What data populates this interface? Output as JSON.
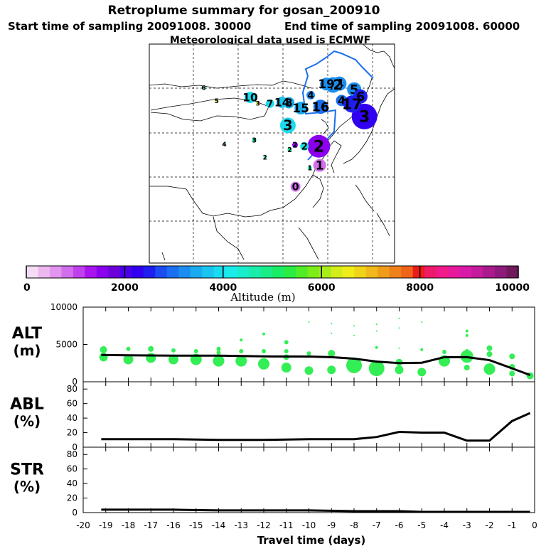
{
  "header": {
    "title": "Retroplume summary for gosan_200910",
    "start_label": "Start time of sampling 20091008. 30000",
    "end_label": "End time of sampling 20091008. 60000",
    "met_label": "Meteorological data used is ECMWF"
  },
  "colorbar": {
    "label": "Altitude (m)",
    "ticks": [
      "0",
      "2000",
      "4000",
      "6000",
      "8000",
      "10000"
    ],
    "colors": [
      "#f5dcf5",
      "#eeb8ee",
      "#e394ee",
      "#d26eee",
      "#c040ee",
      "#a814ee",
      "#8a00ee",
      "#6c00d8",
      "#4a00e8",
      "#3200f0",
      "#1e1ef0",
      "#1a4cf0",
      "#1a6ef0",
      "#1a8ef0",
      "#1aaaf0",
      "#1ac4f0",
      "#1adcf0",
      "#1aecec",
      "#1aeccc",
      "#1aecaa",
      "#1aec88",
      "#1aec66",
      "#2cec44",
      "#50ec28",
      "#7cec1a",
      "#a8ec1a",
      "#d4ec1a",
      "#f0ec1a",
      "#f0d41a",
      "#f0b81a",
      "#f09c1a",
      "#f0801a",
      "#f0641a",
      "#f01a1a",
      "#f01a6a",
      "#f01a8a",
      "#e81a9c",
      "#d81aa8",
      "#c41a9c",
      "#aa1a8c",
      "#901a7c",
      "#701a5c"
    ]
  },
  "map_markers": [
    {
      "label": "0",
      "lon": 122.8,
      "lat": 37.9,
      "color": "#d26eee",
      "size": 7
    },
    {
      "label": "1",
      "lon": 128.2,
      "lat": 42.7,
      "color": "#d26eee",
      "size": 9
    },
    {
      "label": "1",
      "lon": 126.0,
      "lat": 42.1,
      "color": "#1aecaa",
      "size": 3
    },
    {
      "label": "2",
      "lon": 128.0,
      "lat": 47.0,
      "color": "#8a00ee",
      "size": 16
    },
    {
      "label": "2",
      "lon": 124.8,
      "lat": 47.0,
      "color": "#1ae0e0",
      "size": 6
    },
    {
      "label": "2",
      "lon": 122.7,
      "lat": 47.3,
      "color": "#8a00ee",
      "size": 4
    },
    {
      "label": "2",
      "lon": 121.5,
      "lat": 46.2,
      "color": "#1aecaa",
      "size": 3
    },
    {
      "label": "2",
      "lon": 116.0,
      "lat": 44.5,
      "color": "#1aecaa",
      "size": 2
    },
    {
      "label": "3",
      "lon": 121.1,
      "lat": 51.7,
      "color": "#1adcf0",
      "size": 11
    },
    {
      "label": "3",
      "lon": 113.6,
      "lat": 48.4,
      "color": "#1aecaa",
      "size": 3
    },
    {
      "label": "3",
      "lon": 114.4,
      "lat": 56.7,
      "color": "#f0ec1a",
      "size": 2
    },
    {
      "label": "3",
      "lon": 138.2,
      "lat": 53.7,
      "color": "#3200f0",
      "size": 18
    },
    {
      "label": "4",
      "lon": 106.9,
      "lat": 47.5,
      "color": "#1aecaa",
      "size": 2
    },
    {
      "label": "4",
      "lon": 126.2,
      "lat": 58.5,
      "color": "#1a8ef0",
      "size": 6
    },
    {
      "label": "4",
      "lon": 133.1,
      "lat": 57.3,
      "color": "#1a6ef0",
      "size": 8
    },
    {
      "label": "4",
      "lon": 132.6,
      "lat": 61.1,
      "color": "#1a8ef0",
      "size": 10
    },
    {
      "label": "5",
      "lon": 105.2,
      "lat": 57.2,
      "color": "#f0ec1a",
      "size": 2
    },
    {
      "label": "5",
      "lon": 135.9,
      "lat": 59.8,
      "color": "#1a8ef0",
      "size": 10
    },
    {
      "label": "6",
      "lon": 102.3,
      "lat": 60.2,
      "color": "#1aecaa",
      "size": 2
    },
    {
      "label": "6",
      "lon": 137.3,
      "lat": 58.2,
      "color": "#1e1ef0",
      "size": 10
    },
    {
      "label": "7",
      "lon": 117.1,
      "lat": 56.6,
      "color": "#1adcf0",
      "size": 6
    },
    {
      "label": "8",
      "lon": 121.3,
      "lat": 56.8,
      "color": "#1aaaf0",
      "size": 8
    },
    {
      "label": "10",
      "lon": 112.7,
      "lat": 58.0,
      "color": "#1adcf0",
      "size": 8
    },
    {
      "label": "12",
      "lon": 131.2,
      "lat": 60.8,
      "color": "#1a8ef0",
      "size": 11
    },
    {
      "label": "14",
      "lon": 119.8,
      "lat": 56.9,
      "color": "#1ac4f0",
      "size": 8
    },
    {
      "label": "15",
      "lon": 124.0,
      "lat": 55.6,
      "color": "#1aaaf0",
      "size": 9
    },
    {
      "label": "16",
      "lon": 128.4,
      "lat": 55.9,
      "color": "#1a6ef0",
      "size": 10
    },
    {
      "label": "17",
      "lon": 135.4,
      "lat": 56.5,
      "color": "#1e1ef0",
      "size": 12
    },
    {
      "label": "19",
      "lon": 129.7,
      "lat": 61.0,
      "color": "#1a8ef0",
      "size": 9
    }
  ],
  "chart_data": [
    {
      "type": "scatter",
      "name": "ALT",
      "title": "Retroplume summary for gosan_200910",
      "ylabel": "ALT",
      "yunit": "(m)",
      "xlim": [
        -20,
        0
      ],
      "ylim": [
        0,
        10000
      ],
      "yticks": [
        "10000",
        "5000",
        "0"
      ],
      "line": {
        "x": [
          -19.2,
          -18,
          -16,
          -14,
          -13,
          -12,
          -10,
          -9,
          -8,
          -7,
          -6,
          -5,
          -4,
          -3,
          -2,
          -1,
          -0.2
        ],
        "y": [
          3600,
          3550,
          3500,
          3500,
          3450,
          3400,
          3380,
          3300,
          3100,
          2700,
          2500,
          2550,
          3300,
          3300,
          2900,
          1800,
          900
        ]
      },
      "points": [
        {
          "x": -19.1,
          "y": 4300,
          "s": 5
        },
        {
          "x": -19.1,
          "y": 3300,
          "s": 6
        },
        {
          "x": -18,
          "y": 4400,
          "s": 3
        },
        {
          "x": -18,
          "y": 3000,
          "s": 7
        },
        {
          "x": -17,
          "y": 4400,
          "s": 4
        },
        {
          "x": -17,
          "y": 3200,
          "s": 7
        },
        {
          "x": -16,
          "y": 4200,
          "s": 3
        },
        {
          "x": -16,
          "y": 3000,
          "s": 7
        },
        {
          "x": -15,
          "y": 4100,
          "s": 3
        },
        {
          "x": -15,
          "y": 3000,
          "s": 8
        },
        {
          "x": -14,
          "y": 4400,
          "s": 3
        },
        {
          "x": -14,
          "y": 3900,
          "s": 3
        },
        {
          "x": -14,
          "y": 2800,
          "s": 8
        },
        {
          "x": -13,
          "y": 5600,
          "s": 2
        },
        {
          "x": -13,
          "y": 4100,
          "s": 3
        },
        {
          "x": -13,
          "y": 2800,
          "s": 8
        },
        {
          "x": -12,
          "y": 6400,
          "s": 2
        },
        {
          "x": -12,
          "y": 4100,
          "s": 3
        },
        {
          "x": -12,
          "y": 2400,
          "s": 8
        },
        {
          "x": -11,
          "y": 5300,
          "s": 3
        },
        {
          "x": -11,
          "y": 4100,
          "s": 3
        },
        {
          "x": -11,
          "y": 3300,
          "s": 4
        },
        {
          "x": -11,
          "y": 1900,
          "s": 7
        },
        {
          "x": -10,
          "y": 8000,
          "s": 1
        },
        {
          "x": -10,
          "y": 3800,
          "s": 3
        },
        {
          "x": -10,
          "y": 1500,
          "s": 6
        },
        {
          "x": -9,
          "y": 7800,
          "s": 1
        },
        {
          "x": -9,
          "y": 6500,
          "s": 1
        },
        {
          "x": -9,
          "y": 3800,
          "s": 5
        },
        {
          "x": -9,
          "y": 1600,
          "s": 6
        },
        {
          "x": -8,
          "y": 7500,
          "s": 1
        },
        {
          "x": -8,
          "y": 6200,
          "s": 1
        },
        {
          "x": -8,
          "y": 2200,
          "s": 11
        },
        {
          "x": -7,
          "y": 7700,
          "s": 1
        },
        {
          "x": -7,
          "y": 6800,
          "s": 1
        },
        {
          "x": -7,
          "y": 4600,
          "s": 2
        },
        {
          "x": -7,
          "y": 1800,
          "s": 11
        },
        {
          "x": -6,
          "y": 8500,
          "s": 1
        },
        {
          "x": -6,
          "y": 7200,
          "s": 1
        },
        {
          "x": -6,
          "y": 4500,
          "s": 1
        },
        {
          "x": -6,
          "y": 1600,
          "s": 6
        },
        {
          "x": -6,
          "y": 2600,
          "s": 5
        },
        {
          "x": -5,
          "y": 8000,
          "s": 1
        },
        {
          "x": -5,
          "y": 4300,
          "s": 2
        },
        {
          "x": -5,
          "y": 1300,
          "s": 6
        },
        {
          "x": -4,
          "y": 4000,
          "s": 3
        },
        {
          "x": -4,
          "y": 2800,
          "s": 8
        },
        {
          "x": -3,
          "y": 6800,
          "s": 2
        },
        {
          "x": -3,
          "y": 6200,
          "s": 2
        },
        {
          "x": -3,
          "y": 4200,
          "s": 2
        },
        {
          "x": -3,
          "y": 3400,
          "s": 9
        },
        {
          "x": -3,
          "y": 1900,
          "s": 4
        },
        {
          "x": -2,
          "y": 4500,
          "s": 4
        },
        {
          "x": -2,
          "y": 3700,
          "s": 4
        },
        {
          "x": -2,
          "y": 1700,
          "s": 8
        },
        {
          "x": -1,
          "y": 3400,
          "s": 4
        },
        {
          "x": -1,
          "y": 2000,
          "s": 4
        },
        {
          "x": -1,
          "y": 1100,
          "s": 4
        },
        {
          "x": -0.2,
          "y": 800,
          "s": 5
        }
      ]
    },
    {
      "type": "line",
      "name": "ABL",
      "ylabel": "ABL",
      "yunit": "(%)",
      "xlim": [
        -20,
        0
      ],
      "ylim": [
        0,
        90
      ],
      "yticks": [
        "80",
        "60",
        "40",
        "20",
        "0"
      ],
      "x": [
        -19.2,
        -16,
        -14,
        -12,
        -10,
        -8,
        -7,
        -6,
        -5,
        -4,
        -3,
        -2,
        -1,
        -0.2
      ],
      "y": [
        11,
        11,
        10,
        10,
        11,
        11,
        14,
        21,
        20,
        20,
        9,
        9,
        36,
        47
      ]
    },
    {
      "type": "line",
      "name": "STR",
      "ylabel": "STR",
      "yunit": "(%)",
      "xlabel": "Travel time (days)",
      "xlim": [
        -20,
        0
      ],
      "ylim": [
        0,
        90
      ],
      "yticks": [
        "80",
        "60",
        "40",
        "20",
        "0"
      ],
      "xticks": [
        "-20",
        "-19",
        "-18",
        "-17",
        "-16",
        "-15",
        "-14",
        "-13",
        "-12",
        "-11",
        "-10",
        "-9",
        "-8",
        "-7",
        "-6",
        "-5",
        "-4",
        "-3",
        "-2",
        "-1",
        "0"
      ],
      "x": [
        -19.2,
        -16,
        -14,
        -12,
        -10,
        -8,
        -6,
        -5,
        -4,
        -3,
        -2,
        -1,
        -0.2
      ],
      "y": [
        4,
        4,
        3,
        3,
        3,
        2,
        2,
        1,
        1,
        1,
        1,
        1,
        1
      ]
    }
  ]
}
